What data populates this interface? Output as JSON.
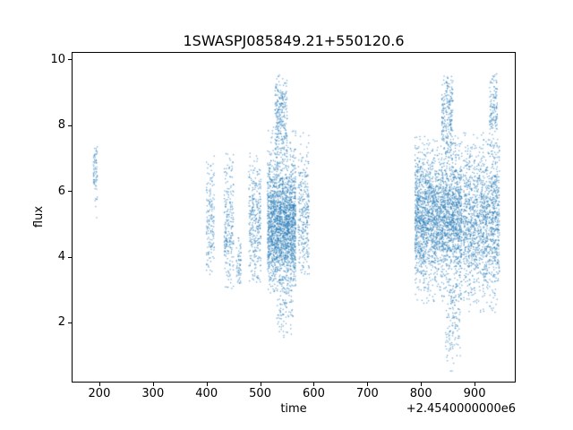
{
  "figure": {
    "background": "#ffffff"
  },
  "chart_data": {
    "type": "scatter",
    "title": "1SWASPJ085849.21+550120.6",
    "xlabel": "time",
    "ylabel": "flux",
    "x_offset_text": "+2.4540000000e6",
    "xlim": [
      150,
      975
    ],
    "ylim": [
      0.2,
      10.2
    ],
    "xticks": [
      200,
      300,
      400,
      500,
      600,
      700,
      800,
      900
    ],
    "yticks": [
      2,
      4,
      6,
      8,
      10
    ],
    "grid": false,
    "legend": "none",
    "marker_color": "#1f77b4",
    "marker_alpha": 0.6,
    "marker_size_px": 1.3,
    "seed": 42,
    "clusters": [
      {
        "x_start": 188,
        "x_end": 195,
        "count": 70,
        "y_mean": 6.7,
        "y_sd": 0.5,
        "y_low": 4.3,
        "y_high": 7.65,
        "tail_frac": 0.06
      },
      {
        "x_start": 399,
        "x_end": 413,
        "count": 160,
        "y_mean": 5.1,
        "y_sd": 0.9,
        "y_low": 3.4,
        "y_high": 7.1,
        "tail_frac": 0.1
      },
      {
        "x_start": 432,
        "x_end": 449,
        "count": 230,
        "y_mean": 4.9,
        "y_sd": 1.0,
        "y_low": 3.0,
        "y_high": 7.3,
        "tail_frac": 0.1
      },
      {
        "x_start": 455,
        "x_end": 463,
        "count": 60,
        "y_mean": 3.8,
        "y_sd": 0.45,
        "y_low": 3.2,
        "y_high": 4.8,
        "tail_frac": 0.05
      },
      {
        "x_start": 478,
        "x_end": 500,
        "count": 320,
        "y_mean": 5.0,
        "y_sd": 1.0,
        "y_low": 3.2,
        "y_high": 7.7,
        "tail_frac": 0.1
      },
      {
        "x_start": 513,
        "x_end": 565,
        "count": 2100,
        "y_mean": 5.0,
        "y_sd": 0.95,
        "y_low": 2.9,
        "y_high": 8.0,
        "tail_frac": 0.04
      },
      {
        "x_start": 527,
        "x_end": 549,
        "count": 260,
        "y_mean": 8.3,
        "y_sd": 0.7,
        "y_low": 6.8,
        "y_high": 9.55,
        "tail_frac": 0.0
      },
      {
        "x_start": 530,
        "x_end": 560,
        "count": 90,
        "y_mean": 2.5,
        "y_sd": 0.5,
        "y_low": 1.5,
        "y_high": 3.3,
        "tail_frac": 0.0
      },
      {
        "x_start": 570,
        "x_end": 590,
        "count": 280,
        "y_mean": 5.3,
        "y_sd": 1.05,
        "y_low": 3.4,
        "y_high": 7.8,
        "tail_frac": 0.08
      },
      {
        "x_start": 788,
        "x_end": 875,
        "count": 2600,
        "y_mean": 5.2,
        "y_sd": 1.0,
        "y_low": 2.6,
        "y_high": 7.7,
        "tail_frac": 0.04
      },
      {
        "x_start": 838,
        "x_end": 858,
        "count": 220,
        "y_mean": 8.4,
        "y_sd": 0.7,
        "y_low": 7.0,
        "y_high": 9.55,
        "tail_frac": 0.0
      },
      {
        "x_start": 845,
        "x_end": 872,
        "count": 130,
        "y_mean": 2.1,
        "y_sd": 0.8,
        "y_low": 0.4,
        "y_high": 3.2,
        "tail_frac": 0.0
      },
      {
        "x_start": 878,
        "x_end": 945,
        "count": 1500,
        "y_mean": 5.1,
        "y_sd": 1.15,
        "y_low": 2.3,
        "y_high": 7.8,
        "tail_frac": 0.05
      },
      {
        "x_start": 927,
        "x_end": 941,
        "count": 130,
        "y_mean": 8.6,
        "y_sd": 0.6,
        "y_low": 7.3,
        "y_high": 9.6,
        "tail_frac": 0.0
      }
    ]
  }
}
